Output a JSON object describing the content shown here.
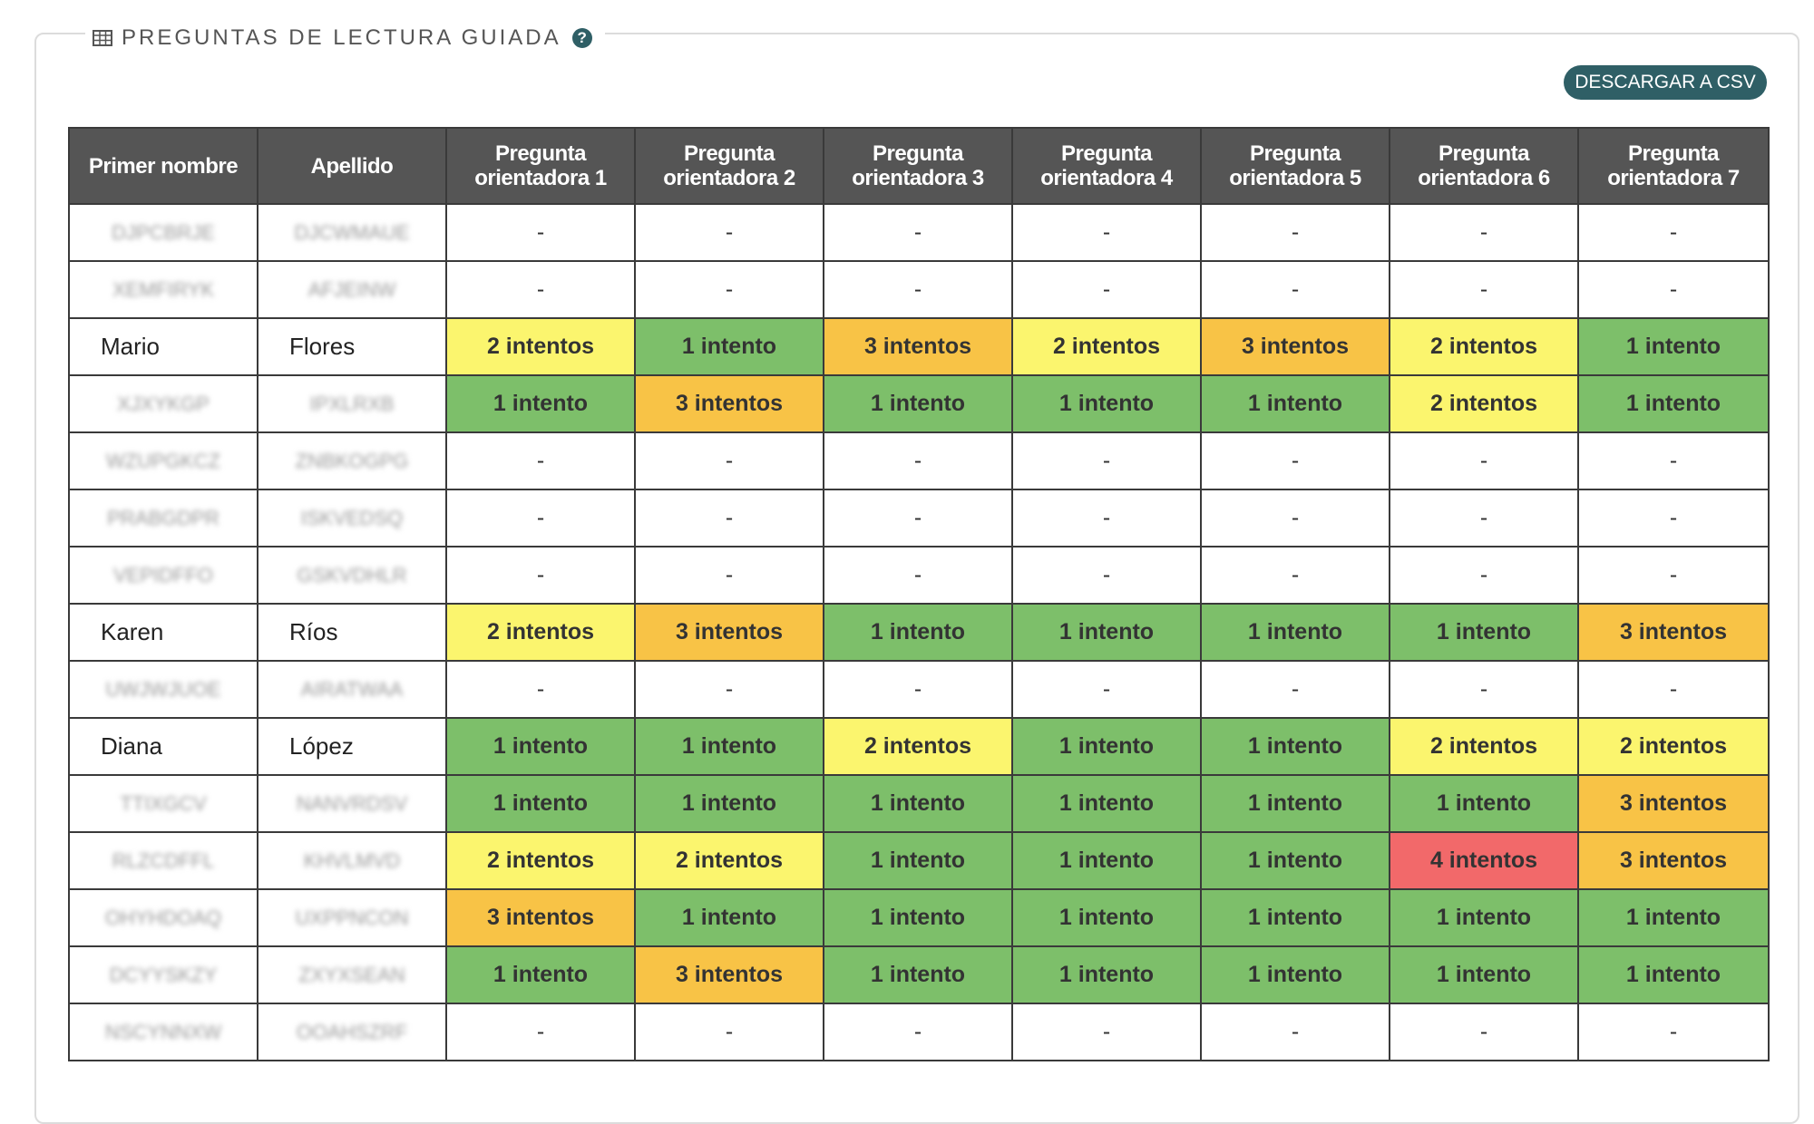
{
  "panel": {
    "title": "PREGUNTAS DE LECTURA GUIADA",
    "grid_icon": "table-grid-icon",
    "help_icon": "question-circle-icon",
    "help_glyph": "?",
    "download_label": "DESCARGAR A CSV"
  },
  "colors": {
    "1": "#7dbf6a",
    "2": "#fbf56e",
    "3": "#f8c346",
    "4": "#f2696a",
    "header_bg": "#555555",
    "button_bg": "#2f5f66"
  },
  "table": {
    "headers": [
      "Primer nombre",
      "Apellido",
      "Pregunta orientadora 1",
      "Pregunta orientadora 2",
      "Pregunta orientadora 3",
      "Pregunta orientadora 4",
      "Pregunta orientadora 5",
      "Pregunta orientadora 6",
      "Pregunta orientadora 7"
    ],
    "rows": [
      {
        "first": "DJPCBRJE",
        "last": "DJCWMAUE",
        "blurred": true,
        "cells": [
          "-",
          "-",
          "-",
          "-",
          "-",
          "-",
          "-"
        ]
      },
      {
        "first": "XEMFIRYK",
        "last": "AFJEINW",
        "blurred": true,
        "cells": [
          "-",
          "-",
          "-",
          "-",
          "-",
          "-",
          "-"
        ]
      },
      {
        "first": "Mario",
        "last": "Flores",
        "blurred": false,
        "cells": [
          "2 intentos",
          "1 intento",
          "3 intentos",
          "2 intentos",
          "3 intentos",
          "2 intentos",
          "1 intento"
        ]
      },
      {
        "first": "XJXYKGP",
        "last": "IPXLRXB",
        "blurred": true,
        "cells": [
          "1 intento",
          "3 intentos",
          "1 intento",
          "1 intento",
          "1 intento",
          "2 intentos",
          "1 intento"
        ]
      },
      {
        "first": "WZUPGKCZ",
        "last": "ZNBKOGPG",
        "blurred": true,
        "cells": [
          "-",
          "-",
          "-",
          "-",
          "-",
          "-",
          "-"
        ]
      },
      {
        "first": "PRABGDPR",
        "last": "ISKVEDSQ",
        "blurred": true,
        "cells": [
          "-",
          "-",
          "-",
          "-",
          "-",
          "-",
          "-"
        ]
      },
      {
        "first": "VEPIDFFO",
        "last": "GSKVDHLR",
        "blurred": true,
        "cells": [
          "-",
          "-",
          "-",
          "-",
          "-",
          "-",
          "-"
        ]
      },
      {
        "first": "Karen",
        "last": "Ríos",
        "blurred": false,
        "cells": [
          "2 intentos",
          "3 intentos",
          "1 intento",
          "1 intento",
          "1 intento",
          "1 intento",
          "3 intentos"
        ]
      },
      {
        "first": "UWJWJUOE",
        "last": "AIRATWAA",
        "blurred": true,
        "cells": [
          "-",
          "-",
          "-",
          "-",
          "-",
          "-",
          "-"
        ]
      },
      {
        "first": "Diana",
        "last": "López",
        "blurred": false,
        "cells": [
          "1 intento",
          "1 intento",
          "2 intentos",
          "1 intento",
          "1 intento",
          "2 intentos",
          "2 intentos"
        ]
      },
      {
        "first": "TTIXGCV",
        "last": "NANVRDSV",
        "blurred": true,
        "cells": [
          "1 intento",
          "1 intento",
          "1 intento",
          "1 intento",
          "1 intento",
          "1 intento",
          "3 intentos"
        ]
      },
      {
        "first": "RLZCDFFL",
        "last": "KHVLMVD",
        "blurred": true,
        "cells": [
          "2 intentos",
          "2 intentos",
          "1 intento",
          "1 intento",
          "1 intento",
          "4 intentos",
          "3 intentos"
        ]
      },
      {
        "first": "OHYHDOAQ",
        "last": "UXPPNCON",
        "blurred": true,
        "cells": [
          "3 intentos",
          "1 intento",
          "1 intento",
          "1 intento",
          "1 intento",
          "1 intento",
          "1 intento"
        ]
      },
      {
        "first": "DCYYSKZY",
        "last": "ZXYXSEAN",
        "blurred": true,
        "cells": [
          "1 intento",
          "3 intentos",
          "1 intento",
          "1 intento",
          "1 intento",
          "1 intento",
          "1 intento"
        ]
      },
      {
        "first": "NSCYNNXW",
        "last": "OOAHSZRF",
        "blurred": true,
        "cells": [
          "-",
          "-",
          "-",
          "-",
          "-",
          "-",
          "-"
        ]
      }
    ]
  }
}
